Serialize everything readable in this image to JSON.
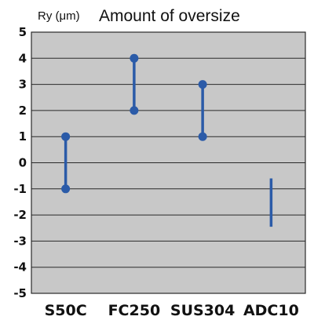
{
  "chart_data": {
    "type": "range",
    "title": "Amount of oversize",
    "ylabel": "Ry (μm)",
    "xlabel": "",
    "ylim": [
      -5,
      5
    ],
    "yticks": [
      "5",
      "4",
      "3",
      "2",
      "1",
      "0",
      "-1",
      "-2",
      "-3",
      "-4",
      "-5"
    ],
    "categories": [
      "S50C",
      "FC250",
      "SUS304",
      "ADC10"
    ],
    "ranges": [
      {
        "category": "S50C",
        "low": -1,
        "high": 1,
        "markers": true
      },
      {
        "category": "FC250",
        "low": 2,
        "high": 4,
        "markers": true
      },
      {
        "category": "SUS304",
        "low": 1,
        "high": 3,
        "markers": true
      },
      {
        "category": "ADC10",
        "low": -2.45,
        "high": -0.6,
        "markers": false
      }
    ],
    "grid": true,
    "colors": {
      "plot_bg": "#c8c8c8",
      "series": "#2b5ba8",
      "grid": "#2a2a2a"
    }
  }
}
